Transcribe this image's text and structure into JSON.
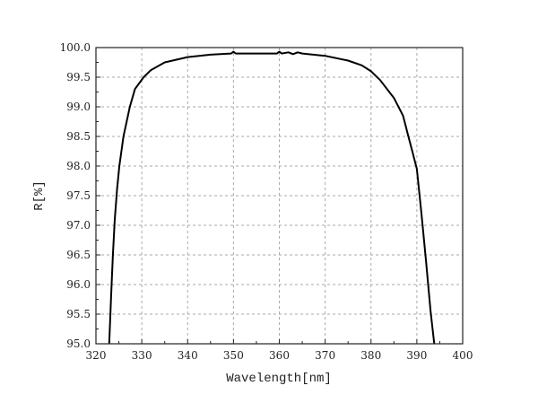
{
  "chart_data": {
    "type": "line",
    "title": "",
    "xlabel": "Wavelength[nm]",
    "ylabel": "R[%]",
    "xlim": [
      320,
      400
    ],
    "ylim": [
      95.0,
      100.0
    ],
    "xticks": [
      "320",
      "330",
      "340",
      "350",
      "360",
      "370",
      "380",
      "390",
      "400"
    ],
    "yticks": [
      "95.0",
      "95.5",
      "96.0",
      "96.5",
      "97.0",
      "97.5",
      "98.0",
      "98.5",
      "99.0",
      "99.5",
      "100.0"
    ],
    "grid": true,
    "series": [
      {
        "name": "R",
        "color": "#000000",
        "x": [
          322.9,
          323.3,
          323.7,
          324.1,
          324.6,
          325.1,
          326.0,
          327.4,
          328.5,
          330.4,
          332.0,
          335.0,
          340.0,
          345.0,
          349.5,
          350.0,
          350.5,
          355.0,
          359.5,
          360.0,
          360.5,
          362.0,
          363.0,
          364.0,
          365.0,
          370.0,
          375.0,
          378.0,
          380.0,
          382.0,
          385.0,
          387.0,
          388.0,
          389.0,
          390.0,
          391.0,
          392.0,
          393.0,
          393.5,
          393.8
        ],
        "y": [
          95.0,
          95.8,
          96.5,
          97.1,
          97.6,
          98.0,
          98.5,
          99.0,
          99.3,
          99.5,
          99.62,
          99.75,
          99.84,
          99.88,
          99.9,
          99.93,
          99.9,
          99.9,
          99.9,
          99.93,
          99.9,
          99.92,
          99.89,
          99.92,
          99.9,
          99.86,
          99.78,
          99.7,
          99.6,
          99.45,
          99.15,
          98.85,
          98.55,
          98.25,
          97.95,
          97.2,
          96.4,
          95.55,
          95.2,
          95.0
        ]
      }
    ]
  }
}
